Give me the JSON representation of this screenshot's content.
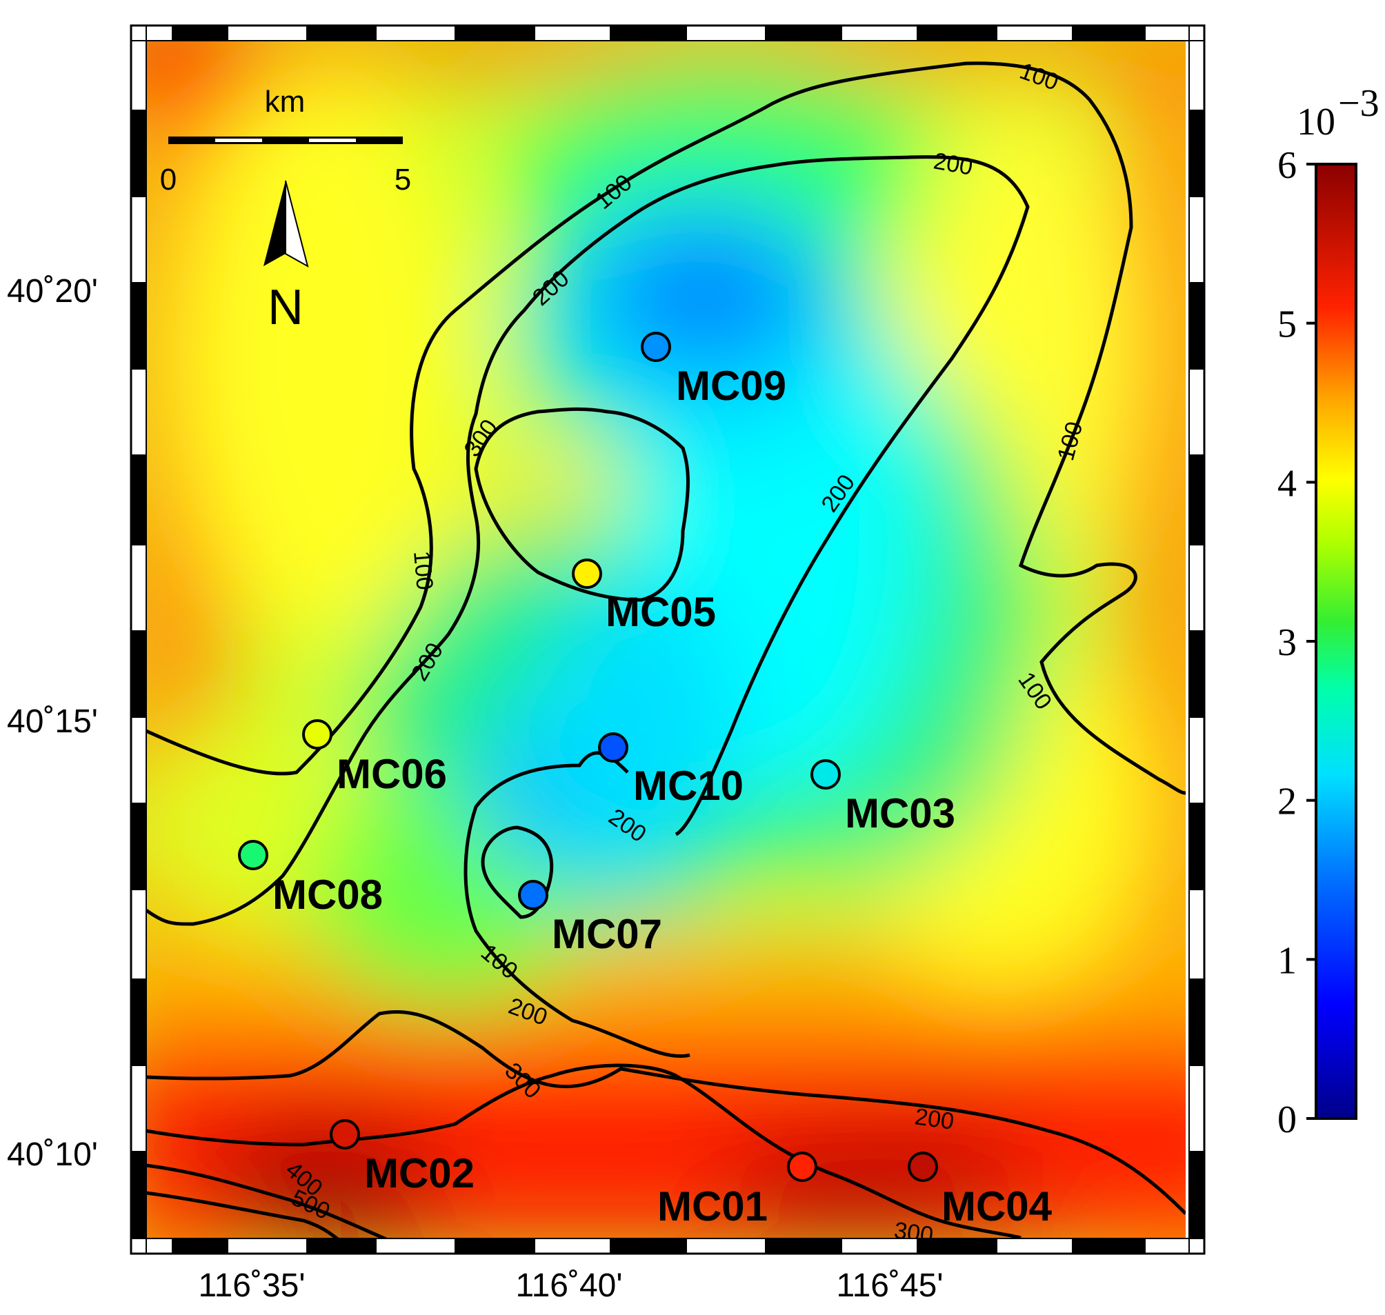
{
  "map": {
    "colorbar": {
      "exponent_base": "10",
      "exponent_power": "−3",
      "ticks": [
        "0",
        "1",
        "2",
        "3",
        "4",
        "5",
        "6"
      ],
      "range": [
        0,
        6
      ],
      "colors": [
        "#00008b",
        "#0000ff",
        "#0090ff",
        "#00ffff",
        "#00ff7f",
        "#7fff00",
        "#ffff00",
        "#ff8c00",
        "#ff0000",
        "#8b0000"
      ]
    },
    "axes": {
      "x_ticks": [
        "116˚35'",
        "116˚40'",
        "116˚45'"
      ],
      "y_ticks": [
        "40˚20'",
        "40˚15'",
        "40˚10'"
      ]
    },
    "scale_bar": {
      "unit": "km",
      "start": "0",
      "end": "5"
    },
    "north_arrow": {
      "label": "N"
    },
    "contour_labels": [
      "100",
      "200",
      "300",
      "400",
      "500"
    ],
    "stations": [
      {
        "name": "MC09",
        "value": 1.7
      },
      {
        "name": "MC05",
        "value": 4.1
      },
      {
        "name": "MC06",
        "value": 3.9
      },
      {
        "name": "MC10",
        "value": 1.3
      },
      {
        "name": "MC03",
        "value": 2.3
      },
      {
        "name": "MC08",
        "value": 2.9
      },
      {
        "name": "MC07",
        "value": 1.5
      },
      {
        "name": "MC02",
        "value": 5.4
      },
      {
        "name": "MC01",
        "value": 5.1
      },
      {
        "name": "MC04",
        "value": 5.6
      }
    ]
  }
}
